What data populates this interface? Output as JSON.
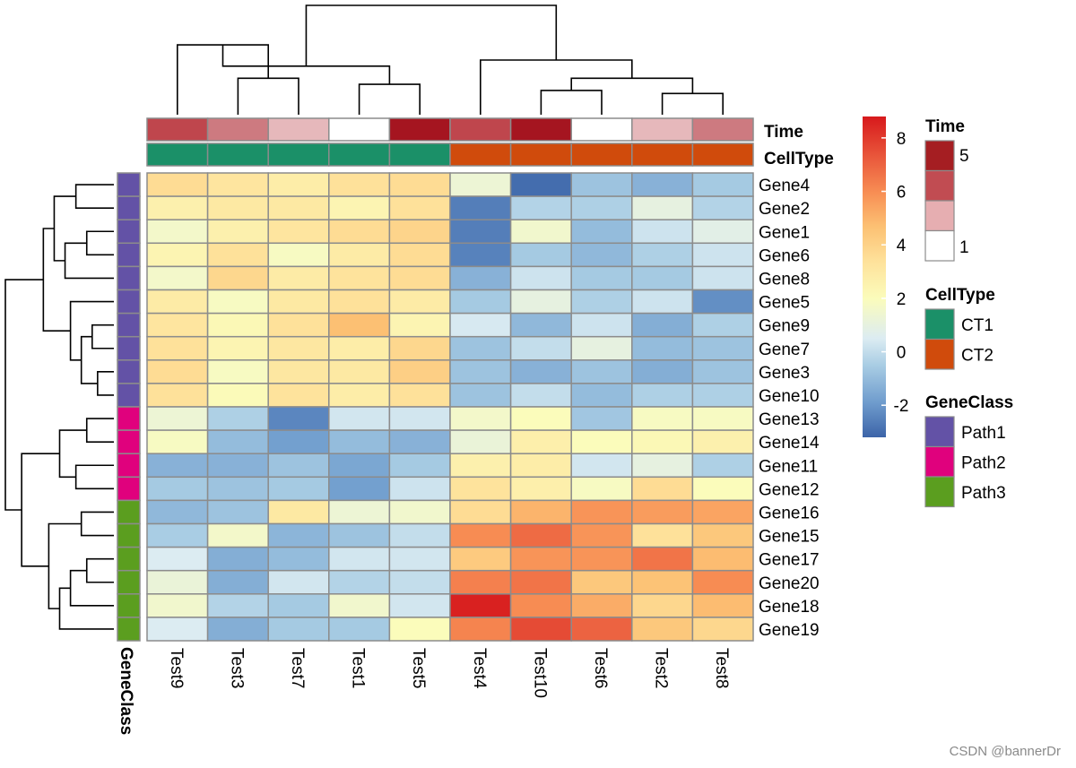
{
  "chart_data": {
    "type": "heatmap",
    "columns": [
      "Test9",
      "Test3",
      "Test7",
      "Test1",
      "Test5",
      "Test4",
      "Test10",
      "Test6",
      "Test2",
      "Test8"
    ],
    "rows": [
      "Gene4",
      "Gene2",
      "Gene1",
      "Gene6",
      "Gene8",
      "Gene5",
      "Gene9",
      "Gene7",
      "Gene3",
      "Gene10",
      "Gene13",
      "Gene14",
      "Gene11",
      "Gene12",
      "Gene16",
      "Gene15",
      "Gene17",
      "Gene20",
      "Gene18",
      "Gene19"
    ],
    "values": [
      [
        3.6,
        3.2,
        2.8,
        3.4,
        3.6,
        1.3,
        -3.0,
        -0.8,
        -1.3,
        -0.6
      ],
      [
        2.6,
        3.0,
        3.0,
        2.4,
        3.4,
        -2.6,
        -0.3,
        -0.4,
        1.0,
        -0.3
      ],
      [
        1.6,
        2.6,
        3.2,
        3.6,
        3.9,
        -2.6,
        1.5,
        -1.0,
        0.2,
        0.8
      ],
      [
        2.4,
        3.4,
        1.8,
        2.9,
        3.6,
        -2.5,
        -0.6,
        -1.1,
        -0.4,
        0.2
      ],
      [
        1.6,
        3.8,
        2.9,
        3.3,
        3.6,
        -1.3,
        0.2,
        -0.6,
        -0.6,
        0.2
      ],
      [
        2.9,
        1.8,
        3.0,
        3.4,
        2.9,
        -0.6,
        1.0,
        -0.4,
        0.2,
        -2.2
      ],
      [
        3.2,
        2.2,
        3.4,
        4.7,
        2.4,
        0.4,
        -1.1,
        0.2,
        -1.4,
        -0.4
      ],
      [
        3.4,
        2.4,
        3.1,
        2.8,
        3.8,
        -0.8,
        0.0,
        1.0,
        -1.0,
        -0.8
      ],
      [
        3.6,
        1.8,
        3.1,
        3.0,
        4.1,
        -0.8,
        -1.3,
        -0.8,
        -1.4,
        -0.8
      ],
      [
        3.4,
        2.1,
        3.3,
        2.8,
        3.4,
        -0.8,
        0.0,
        -1.0,
        -0.4,
        -0.4
      ],
      [
        1.3,
        -0.4,
        -2.4,
        0.3,
        0.3,
        1.6,
        2.0,
        -0.7,
        1.8,
        1.8
      ],
      [
        1.8,
        -1.0,
        -1.8,
        -1.0,
        -1.3,
        1.2,
        2.7,
        2.0,
        2.2,
        2.6
      ],
      [
        -1.3,
        -1.3,
        -0.8,
        -1.6,
        -0.6,
        2.6,
        2.8,
        0.3,
        1.0,
        -0.4
      ],
      [
        -0.6,
        -0.8,
        -0.6,
        -1.8,
        0.2,
        3.3,
        2.7,
        1.8,
        3.6,
        2.0
      ],
      [
        -1.1,
        -0.8,
        3.0,
        1.3,
        1.5,
        3.6,
        5.0,
        5.8,
        5.6,
        5.4
      ],
      [
        -0.5,
        1.6,
        -1.2,
        -0.8,
        0.0,
        6.0,
        6.8,
        5.8,
        3.4,
        4.4
      ],
      [
        0.5,
        -1.4,
        -1.0,
        0.3,
        0.3,
        4.3,
        5.8,
        5.8,
        6.6,
        4.8
      ],
      [
        1.2,
        -1.4,
        0.3,
        -0.3,
        0.0,
        6.3,
        6.6,
        4.4,
        4.6,
        6.0
      ],
      [
        1.5,
        -0.3,
        -0.6,
        1.5,
        0.3,
        8.6,
        6.0,
        5.2,
        3.8,
        4.8
      ],
      [
        0.5,
        -1.4,
        -0.6,
        -0.6,
        2.0,
        6.2,
        7.6,
        7.0,
        4.4,
        3.8
      ]
    ],
    "color_scale": {
      "min": -3.2,
      "max": 8.8,
      "stops": [
        [
          -3.2,
          "#3c64a8"
        ],
        [
          -1.9,
          "#6f9ccd"
        ],
        [
          -0.5,
          "#a9cde4"
        ],
        [
          0.5,
          "#dcecf2"
        ],
        [
          2.0,
          "#fbfcbb"
        ],
        [
          3.4,
          "#fee19a"
        ],
        [
          4.7,
          "#fcc073"
        ],
        [
          5.9,
          "#f89055"
        ],
        [
          7.3,
          "#e9573b"
        ],
        [
          8.8,
          "#d7191c"
        ]
      ],
      "ticks": [
        -2,
        0,
        2,
        4,
        6,
        8
      ]
    },
    "column_annotations": {
      "Time": [
        4,
        3,
        2,
        1,
        5,
        4,
        5,
        1,
        2,
        3
      ],
      "CellType": [
        "CT1",
        "CT1",
        "CT1",
        "CT1",
        "CT1",
        "CT2",
        "CT2",
        "CT2",
        "CT2",
        "CT2"
      ]
    },
    "row_annotations": {
      "GeneClass": [
        "Path1",
        "Path1",
        "Path1",
        "Path1",
        "Path1",
        "Path1",
        "Path1",
        "Path1",
        "Path1",
        "Path1",
        "Path2",
        "Path2",
        "Path2",
        "Path2",
        "Path3",
        "Path3",
        "Path3",
        "Path3",
        "Path3",
        "Path3"
      ]
    },
    "legends": {
      "Time": {
        "title": "Time",
        "max_label": "5",
        "min_label": "1",
        "colors": [
          "#a51e22",
          "#c14c52",
          "#e6aeb1",
          "#ffffff"
        ]
      },
      "CellType": {
        "title": "CellType",
        "items": [
          {
            "label": "CT1",
            "color": "#1b9068"
          },
          {
            "label": "CT2",
            "color": "#d04b0c"
          }
        ]
      },
      "GeneClass": {
        "title": "GeneClass",
        "items": [
          {
            "label": "Path1",
            "color": "#6352a6"
          },
          {
            "label": "Path2",
            "color": "#e0017d"
          },
          {
            "label": "Path3",
            "color": "#5b9e1f"
          }
        ]
      }
    },
    "time_colors": {
      "1": "#ffffff",
      "2": "#e6b8bb",
      "3": "#cd7a80",
      "4": "#bf464d",
      "5": "#a51520"
    },
    "annotation_labels": {
      "time": "Time",
      "celltype": "CellType",
      "geneclass": "GeneClass"
    },
    "watermark": "CSDN @bannerDr",
    "dendrograms": {
      "columns": [
        [
          1,
          2,
          1.2
        ],
        [
          0,
          10,
          2.3
        ],
        [
          3,
          4,
          1.0
        ],
        [
          11,
          12,
          1.6
        ],
        [
          6,
          7,
          0.8
        ],
        [
          8,
          9,
          0.7
        ],
        [
          14,
          15,
          1.2
        ],
        [
          5,
          16,
          1.8
        ],
        [
          13,
          17,
          3.6
        ]
      ],
      "rows": [
        [
          0,
          1,
          0.35
        ],
        [
          2,
          3,
          0.25
        ],
        [
          21,
          4,
          0.45
        ],
        [
          20,
          22,
          0.55
        ],
        [
          6,
          7,
          0.2
        ],
        [
          8,
          9,
          0.15
        ],
        [
          24,
          25,
          0.3
        ],
        [
          5,
          26,
          0.4
        ],
        [
          23,
          27,
          0.65
        ],
        [
          10,
          11,
          0.25
        ],
        [
          12,
          13,
          0.35
        ],
        [
          29,
          30,
          0.5
        ],
        [
          14,
          15,
          0.3
        ],
        [
          16,
          17,
          0.25
        ],
        [
          33,
          18,
          0.4
        ],
        [
          34,
          19,
          0.5
        ],
        [
          32,
          35,
          0.6
        ],
        [
          31,
          36,
          0.85
        ],
        [
          28,
          37,
          1.0
        ]
      ]
    }
  }
}
